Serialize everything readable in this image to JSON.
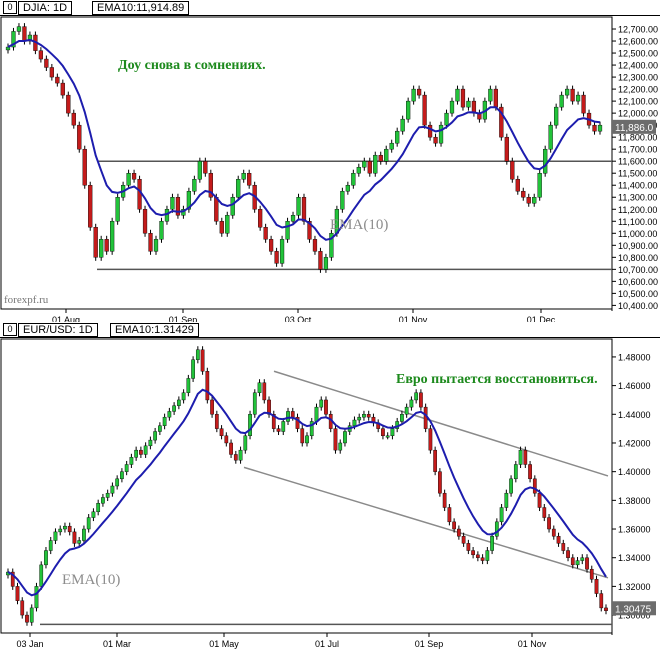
{
  "colors": {
    "bull": "#22c33a",
    "bear": "#c41b1b",
    "ema": "#1d1dae",
    "level": "#555555",
    "channel": "#8a8a8a",
    "annotation": "#1d8a1d",
    "price_label": "#6c6c6c"
  },
  "top": {
    "header": {
      "box": "0",
      "symbol": "DJIA: 1D",
      "indicator": "EMA10:11,914.89"
    },
    "annotation": "Доу снова в сомнениях.",
    "ema_label": "EMA(10)",
    "watermark": "forexpf.ru",
    "last_price": "11,886.0",
    "chart_data": {
      "type": "candlestick",
      "title": "",
      "x_ticks": [
        "01 Aug",
        "01 Sep",
        "03 Oct",
        "01 Nov",
        "01 Dec"
      ],
      "y_ticks": [
        "12,700.00",
        "12,600.00",
        "12,500.00",
        "12,400.00",
        "12,300.00",
        "12,200.00",
        "12,100.00",
        "12,000.00",
        "11,900.00",
        "11,800.00",
        "11,700.00",
        "11,600.00",
        "11,500.00",
        "11,400.00",
        "11,300.00",
        "11,200.00",
        "11,100.00",
        "11,000.00",
        "10,900.00",
        "10,800.00",
        "10,700.00",
        "10,600.00",
        "10,500.00",
        "10,400.00"
      ],
      "ylim": [
        10370,
        12800
      ],
      "grid": false,
      "horizontal_levels": [
        11600,
        10700
      ],
      "ema_period": 10,
      "closes": [
        12550,
        12680,
        12720,
        12600,
        12650,
        12520,
        12450,
        12380,
        12300,
        12250,
        12150,
        12000,
        11900,
        11700,
        11400,
        11050,
        10800,
        10950,
        10850,
        11100,
        11300,
        11400,
        11500,
        11450,
        11200,
        11000,
        10850,
        10950,
        11100,
        11200,
        11300,
        11150,
        11200,
        11350,
        11450,
        11600,
        11500,
        11300,
        11100,
        11000,
        11150,
        11300,
        11450,
        11500,
        11400,
        11200,
        11050,
        10950,
        10850,
        10750,
        10950,
        11100,
        11150,
        11300,
        11100,
        10950,
        10850,
        10700,
        10800,
        11000,
        11200,
        11350,
        11400,
        11500,
        11550,
        11600,
        11500,
        11650,
        11600,
        11700,
        11750,
        11850,
        11950,
        12100,
        12200,
        12150,
        11900,
        11800,
        11750,
        11900,
        12000,
        12100,
        12200,
        12050,
        12100,
        12000,
        11950,
        12100,
        12200,
        12050,
        11800,
        11600,
        11450,
        11350,
        11300,
        11250,
        11300,
        11500,
        11700,
        11900,
        12050,
        12150,
        12200,
        12100,
        12150,
        12000,
        11900,
        11850,
        11900
      ]
    }
  },
  "bottom": {
    "header": {
      "box": "0",
      "symbol": "EUR/USD: 1D",
      "indicator": "EMA10:1.31429"
    },
    "annotation": "Евро пытается восстановиться.",
    "ema_label": "EMA(10)",
    "last_price": "1.30475",
    "chart_data": {
      "type": "candlestick",
      "title": "",
      "x_ticks": [
        "03 Jan",
        "01 Mar",
        "01 May",
        "01 Jul",
        "01 Sep",
        "01 Nov"
      ],
      "y_ticks": [
        "1.48000",
        "1.46000",
        "1.44000",
        "1.42000",
        "1.40000",
        "1.38000",
        "1.36000",
        "1.34000",
        "1.32000",
        "1.30000"
      ],
      "ylim": [
        1.2875,
        1.4925
      ],
      "grid": false,
      "horizontal_levels": [
        1.2935
      ],
      "channel": {
        "upper": [
          [
            1.47,
            1.397
          ]
        ],
        "lower": [
          [
            1.403,
            1.326
          ]
        ]
      },
      "ema_period": 10,
      "closes": [
        1.33,
        1.32,
        1.31,
        1.3,
        1.295,
        1.305,
        1.32,
        1.335,
        1.345,
        1.352,
        1.358,
        1.36,
        1.362,
        1.358,
        1.35,
        1.352,
        1.36,
        1.368,
        1.372,
        1.378,
        1.382,
        1.385,
        1.39,
        1.395,
        1.4,
        1.405,
        1.41,
        1.415,
        1.412,
        1.418,
        1.422,
        1.428,
        1.432,
        1.438,
        1.442,
        1.446,
        1.45,
        1.455,
        1.465,
        1.478,
        1.485,
        1.47,
        1.45,
        1.44,
        1.43,
        1.425,
        1.42,
        1.412,
        1.408,
        1.415,
        1.425,
        1.44,
        1.455,
        1.462,
        1.45,
        1.44,
        1.43,
        1.428,
        1.435,
        1.442,
        1.438,
        1.43,
        1.42,
        1.425,
        1.435,
        1.445,
        1.45,
        1.44,
        1.43,
        1.415,
        1.42,
        1.428,
        1.432,
        1.436,
        1.438,
        1.44,
        1.438,
        1.434,
        1.43,
        1.425,
        1.425,
        1.43,
        1.435,
        1.44,
        1.445,
        1.45,
        1.455,
        1.445,
        1.43,
        1.415,
        1.4,
        1.385,
        1.375,
        1.365,
        1.36,
        1.355,
        1.35,
        1.345,
        1.342,
        1.34,
        1.338,
        1.345,
        1.355,
        1.365,
        1.375,
        1.385,
        1.395,
        1.405,
        1.415,
        1.405,
        1.395,
        1.385,
        1.375,
        1.368,
        1.36,
        1.355,
        1.35,
        1.345,
        1.34,
        1.335,
        1.338,
        1.34,
        1.332,
        1.325,
        1.315,
        1.305,
        1.303
      ]
    }
  }
}
